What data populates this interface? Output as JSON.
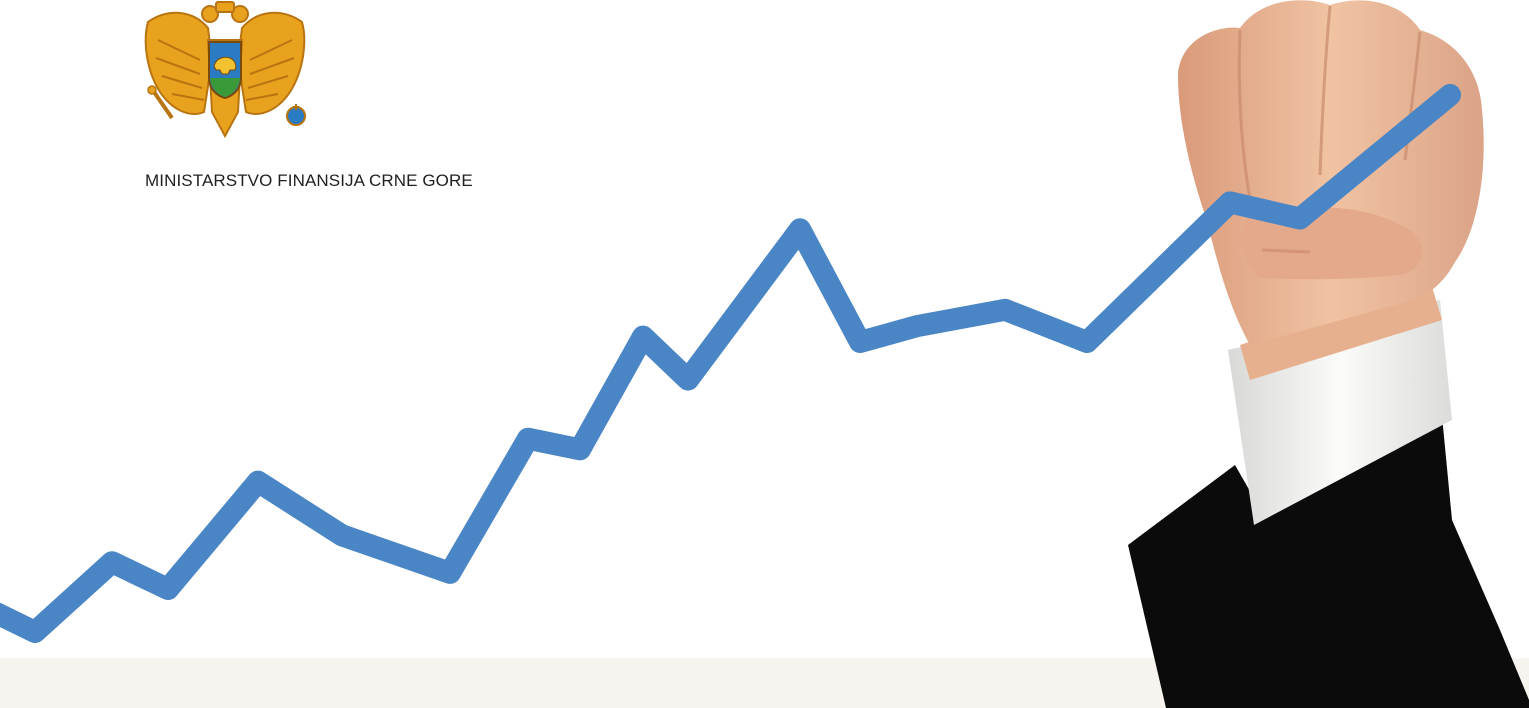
{
  "header": {
    "ministry_name": "MINISTARSTVO FINANSIJA CRNE GORE"
  },
  "emblem": {
    "icon": "montenegro-coat-of-arms-icon"
  },
  "illustration": {
    "subject": "hand-drawing-rising-line",
    "line_values": [
      0,
      13,
      8,
      28,
      18,
      11,
      36,
      34,
      55,
      47,
      75,
      54,
      57,
      60,
      54,
      80,
      77,
      100
    ]
  },
  "colors": {
    "background": "#ffffff",
    "bottom_band": "#f7f4ef",
    "ministry_text": "#1f1f1f",
    "trend_line": "#4a86c5",
    "emblem_gold": "#e8a21e",
    "emblem_shield_blue": "#2a7bc2",
    "sleeve": "#0b0b0b",
    "cuff": "#f2f2f0",
    "skin": "#e9b796"
  }
}
